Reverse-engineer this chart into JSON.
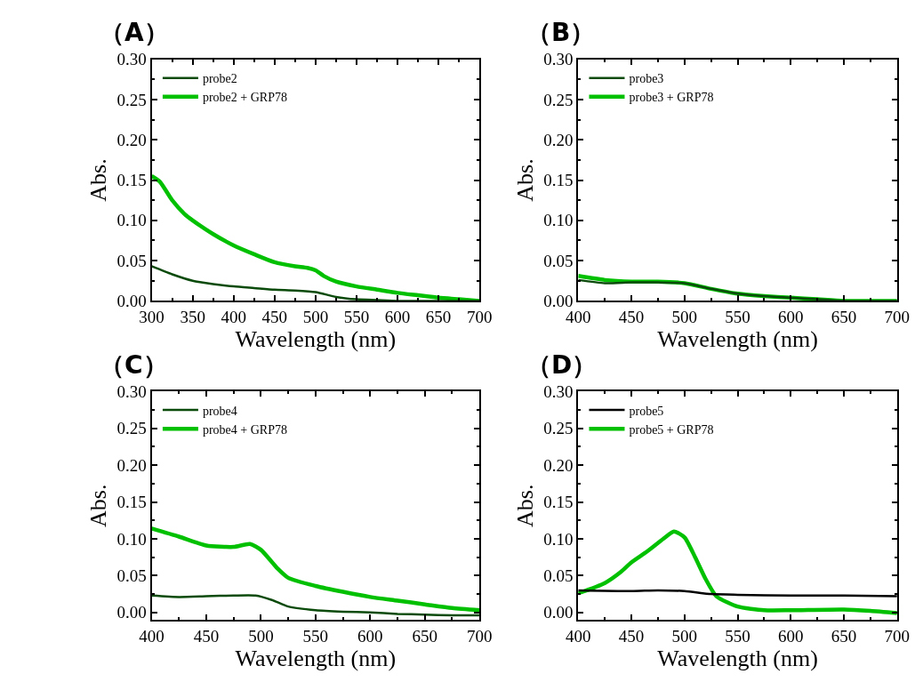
{
  "chart_data": [
    {
      "type": "line",
      "title": "（A）",
      "xlabel": "Wavelength (nm)",
      "ylabel": "Abs.",
      "xlim": [
        300,
        700
      ],
      "xticks": [
        300,
        350,
        400,
        450,
        500,
        550,
        600,
        650,
        700
      ],
      "ylim": [
        0,
        0.3
      ],
      "yticks": [
        {
          "value": 0,
          "label": "0.00"
        },
        {
          "value": 0.05,
          "label": "0.05"
        },
        {
          "value": 0.1,
          "label": "0.10"
        },
        {
          "value": 0.15,
          "label": "0.15"
        },
        {
          "value": 0.2,
          "label": "0.20"
        },
        {
          "value": 0.25,
          "label": "0.25"
        },
        {
          "value": 0.3,
          "label": "0.30"
        }
      ],
      "legend": "top left",
      "series": [
        {
          "name": "probe2",
          "color": "#0a4a0a",
          "x": [
            300,
            325,
            350,
            375,
            400,
            425,
            450,
            475,
            500,
            525,
            550,
            575,
            600,
            650,
            700
          ],
          "values": [
            0.043,
            0.033,
            0.025,
            0.021,
            0.018,
            0.016,
            0.014,
            0.013,
            0.011,
            0.005,
            0.002,
            0.001,
            0.0,
            0.0,
            0.0
          ]
        },
        {
          "name": "probe2 + GRP78",
          "color": "#00c000",
          "x": [
            300,
            310,
            325,
            340,
            350,
            375,
            400,
            425,
            450,
            475,
            490,
            500,
            510,
            525,
            550,
            575,
            600,
            625,
            650,
            675,
            700
          ],
          "values": [
            0.155,
            0.148,
            0.125,
            0.108,
            0.1,
            0.083,
            0.069,
            0.058,
            0.048,
            0.043,
            0.041,
            0.038,
            0.031,
            0.024,
            0.018,
            0.014,
            0.01,
            0.007,
            0.004,
            0.002,
            0.0
          ]
        }
      ]
    },
    {
      "type": "line",
      "title": "（B）",
      "xlabel": "Wavelength (nm)",
      "ylabel": "Abs.",
      "xlim": [
        400,
        700
      ],
      "xticks": [
        400,
        450,
        500,
        550,
        600,
        650,
        700
      ],
      "ylim": [
        0,
        0.3
      ],
      "yticks": [
        {
          "value": 0,
          "label": "0.00"
        },
        {
          "value": 0.05,
          "label": "0.05"
        },
        {
          "value": 0.1,
          "label": "0.10"
        },
        {
          "value": 0.15,
          "label": "0.15"
        },
        {
          "value": 0.2,
          "label": "0.20"
        },
        {
          "value": 0.25,
          "label": "0.25"
        },
        {
          "value": 0.3,
          "label": "0.30"
        }
      ],
      "legend": "top left",
      "series": [
        {
          "name": "probe3",
          "color": "#0a4a0a",
          "x": [
            400,
            425,
            450,
            475,
            500,
            525,
            550,
            575,
            600,
            625,
            650,
            700
          ],
          "values": [
            0.026,
            0.022,
            0.023,
            0.023,
            0.022,
            0.015,
            0.009,
            0.006,
            0.004,
            0.002,
            0.0,
            0.0
          ]
        },
        {
          "name": "probe3 + GRP78",
          "color": "#00c000",
          "x": [
            400,
            425,
            450,
            475,
            500,
            525,
            550,
            575,
            600,
            625,
            650,
            700
          ],
          "values": [
            0.031,
            0.026,
            0.024,
            0.024,
            0.022,
            0.015,
            0.009,
            0.006,
            0.004,
            0.002,
            0.0,
            0.0
          ]
        }
      ]
    },
    {
      "type": "line",
      "title": "（C）",
      "xlabel": "Wavelength (nm)",
      "ylabel": "Abs.",
      "xlim": [
        400,
        700
      ],
      "xticks": [
        400,
        450,
        500,
        550,
        600,
        650,
        700
      ],
      "ylim": [
        -0.01,
        0.3
      ],
      "yticks": [
        {
          "value": 0,
          "label": "0.00"
        },
        {
          "value": 0.05,
          "label": "0.05"
        },
        {
          "value": 0.1,
          "label": "0.10"
        },
        {
          "value": 0.15,
          "label": "0.15"
        },
        {
          "value": 0.2,
          "label": "0.20"
        },
        {
          "value": 0.25,
          "label": "0.25"
        },
        {
          "value": 0.3,
          "label": "0.30"
        }
      ],
      "legend": "top left",
      "series": [
        {
          "name": "probe4",
          "color": "#0a4a0a",
          "x": [
            400,
            425,
            450,
            475,
            495,
            510,
            525,
            550,
            575,
            600,
            625,
            650,
            675,
            700
          ],
          "values": [
            0.023,
            0.021,
            0.022,
            0.023,
            0.023,
            0.017,
            0.008,
            0.003,
            0.001,
            0.0,
            -0.002,
            -0.003,
            -0.004,
            -0.004
          ]
        },
        {
          "name": "probe4 + GRP78",
          "color": "#00c000",
          "x": [
            400,
            425,
            450,
            475,
            490,
            500,
            515,
            525,
            550,
            575,
            600,
            625,
            650,
            675,
            700
          ],
          "values": [
            0.114,
            0.103,
            0.091,
            0.089,
            0.093,
            0.085,
            0.06,
            0.047,
            0.036,
            0.028,
            0.021,
            0.016,
            0.011,
            0.006,
            0.003
          ]
        }
      ]
    },
    {
      "type": "line",
      "title": "（D）",
      "xlabel": "Wavelength (nm)",
      "ylabel": "Abs.",
      "xlim": [
        400,
        700
      ],
      "xticks": [
        400,
        450,
        500,
        550,
        600,
        650,
        700
      ],
      "ylim": [
        -0.01,
        0.3
      ],
      "yticks": [
        {
          "value": 0,
          "label": "0.00"
        },
        {
          "value": 0.05,
          "label": "0.05"
        },
        {
          "value": 0.1,
          "label": "0.10"
        },
        {
          "value": 0.15,
          "label": "0.15"
        },
        {
          "value": 0.2,
          "label": "0.20"
        },
        {
          "value": 0.25,
          "label": "0.25"
        },
        {
          "value": 0.3,
          "label": "0.30"
        }
      ],
      "legend": "top left",
      "series": [
        {
          "name": "probe5",
          "color": "#000000",
          "x": [
            400,
            450,
            475,
            500,
            525,
            550,
            600,
            650,
            700
          ],
          "values": [
            0.03,
            0.029,
            0.03,
            0.029,
            0.025,
            0.024,
            0.023,
            0.023,
            0.022
          ]
        },
        {
          "name": "probe5 + GRP78",
          "color": "#00c000",
          "x": [
            400,
            425,
            440,
            450,
            465,
            480,
            490,
            500,
            510,
            520,
            530,
            550,
            575,
            600,
            650,
            675,
            700
          ],
          "values": [
            0.026,
            0.04,
            0.055,
            0.068,
            0.083,
            0.1,
            0.11,
            0.102,
            0.075,
            0.045,
            0.022,
            0.008,
            0.003,
            0.003,
            0.004,
            0.002,
            -0.001
          ]
        }
      ]
    }
  ]
}
